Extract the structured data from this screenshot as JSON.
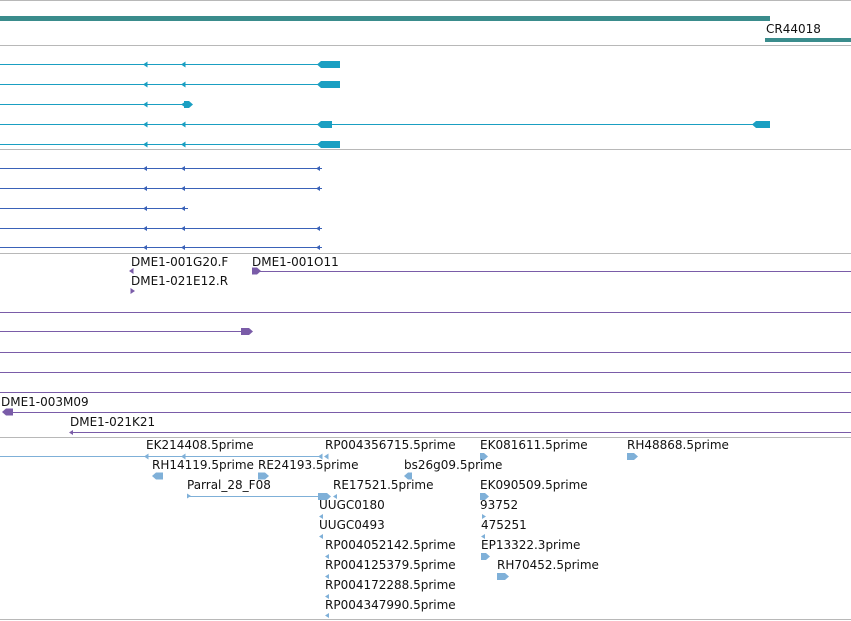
{
  "colors": {
    "gene": "#3a8c8c",
    "transcript": "#1a9fc2",
    "protein": "#3a62b8",
    "clone": "#7a5ca8",
    "est": "#7fb0d8",
    "separator": "#b8b8b8"
  },
  "tracks": {
    "gene": {
      "label": "CR44018"
    },
    "clones": {
      "labels": [
        "DME1-001G20.F",
        "DME1-001O11",
        "DME1-021E12.R",
        "DME1-003M09",
        "DME1-021K21"
      ]
    },
    "ests": {
      "labels": [
        "EK214408.5prime",
        "RP004356715.5prime",
        "EK081611.5prime",
        "RH48868.5prime",
        "RH14119.5prime",
        "RE24193.5prime",
        "bs26g09.5prime",
        "Parral_28_F08",
        "RE17521.5prime",
        "EK090509.5prime",
        "UUGC0180",
        "93752",
        "UUGC0493",
        "475251",
        "RP004052142.5prime",
        "EP13322.3prime",
        "RP004125379.5prime",
        "RH70452.5prime",
        "RP004172288.5prime",
        "RP004347990.5prime"
      ]
    }
  }
}
